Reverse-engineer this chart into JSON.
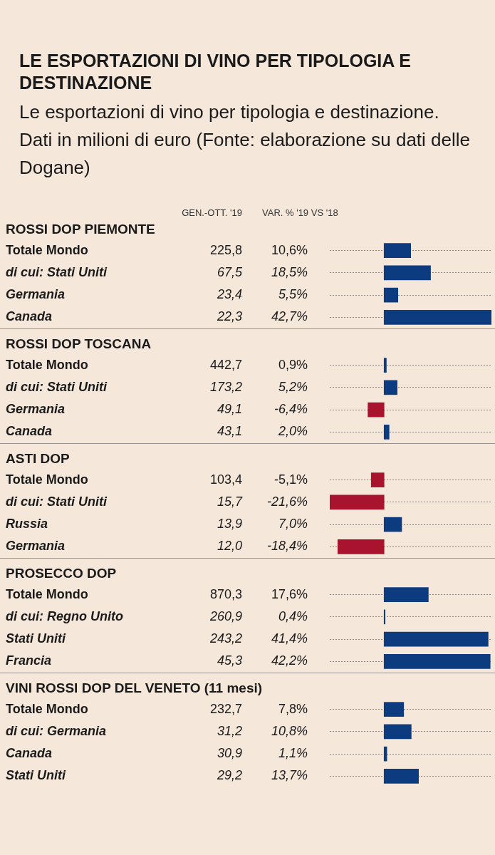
{
  "chart_data": [
    {
      "type": "other",
      "title": "LE ESPORTAZIONI DI VINO PER TIPOLOGIA E DESTINAZIONE",
      "subtitle": "Le esportazioni di vino per tipologia e destinazione. Dati in milioni di euro (Fonte: elaborazione su dati delle Dogane)"
    },
    {
      "type": "bar",
      "orientation": "horizontal",
      "title": "ROSSI DOP PIEMONTE",
      "grid": true,
      "categories": [
        "Totale Mondo",
        "di cui: Stati Uniti",
        "Germania",
        "Canada"
      ],
      "annotations": [
        "GEN.-OTT. '19",
        "225,8",
        "67,5",
        "23,4",
        "22,3"
      ],
      "series": [
        {
          "name": "VAR. % '19 VS '18",
          "values": [
            10.6,
            18.5,
            5.5,
            42.7
          ],
          "value_labels": [
            "10,6%",
            "18,5%",
            "5,5%",
            "42,7%"
          ],
          "colors": [
            "#0d3b80",
            "#0d3b80",
            "#0d3b80",
            "#0d3b80"
          ]
        }
      ]
    },
    {
      "type": "bar",
      "orientation": "horizontal",
      "title": "ROSSI DOP TOSCANA",
      "grid": true,
      "categories": [
        "Totale Mondo",
        "di cui: Stati Uniti",
        "Germania",
        "Canada"
      ],
      "annotations": [
        "442,7",
        "173,2",
        "49,1",
        "43,1"
      ],
      "series": [
        {
          "values": [
            0.9,
            5.2,
            -6.4,
            2.0
          ],
          "value_labels": [
            "0,9%",
            "5,2%",
            "-6,4%",
            "2,0%"
          ],
          "colors": [
            "#0d3b80",
            "#0d3b80",
            "#a8142e",
            "#0d3b80"
          ]
        }
      ]
    },
    {
      "type": "bar",
      "orientation": "horizontal",
      "title": "ASTI DOP",
      "grid": true,
      "categories": [
        "Totale Mondo",
        "di cui: Stati Uniti",
        "Russia",
        "Germania"
      ],
      "annotations": [
        "103,4",
        "15,7",
        "13,9",
        "12,0"
      ],
      "series": [
        {
          "values": [
            -5.1,
            -21.6,
            7.0,
            -18.4
          ],
          "value_labels": [
            "-5,1%",
            "-21,6%",
            "7,0%",
            "-18,4%"
          ],
          "colors": [
            "#a8142e",
            "#a8142e",
            "#0d3b80",
            "#a8142e"
          ]
        }
      ]
    },
    {
      "type": "bar",
      "orientation": "horizontal",
      "title": "PROSECCO DOP",
      "grid": true,
      "categories": [
        "Totale Mondo",
        "di cui: Regno Unito",
        "Stati Uniti",
        "Francia"
      ],
      "annotations": [
        "870,3",
        "260,9",
        "243,2",
        "45,3"
      ],
      "series": [
        {
          "values": [
            17.6,
            0.4,
            41.4,
            42.2
          ],
          "value_labels": [
            "17,6%",
            "0,4%",
            "41,4%",
            "42,2%"
          ],
          "colors": [
            "#0d3b80",
            "#0d3b80",
            "#0d3b80",
            "#0d3b80"
          ]
        }
      ]
    },
    {
      "type": "bar",
      "orientation": "horizontal",
      "title": "VINI ROSSI DOP DEL VENETO (11 mesi)",
      "grid": true,
      "categories": [
        "Totale Mondo",
        "di cui: Germania",
        "Canada",
        "Stati Uniti"
      ],
      "annotations": [
        "232,7",
        "31,2",
        "30,9",
        "29,2"
      ],
      "series": [
        {
          "values": [
            7.8,
            10.8,
            1.1,
            13.7
          ],
          "value_labels": [
            "7,8%",
            "10,8%",
            "1,1%",
            "13,7%"
          ],
          "colors": [
            "#0d3b80",
            "#0d3b80",
            "#0d3b80",
            "#0d3b80"
          ]
        }
      ]
    }
  ]
}
